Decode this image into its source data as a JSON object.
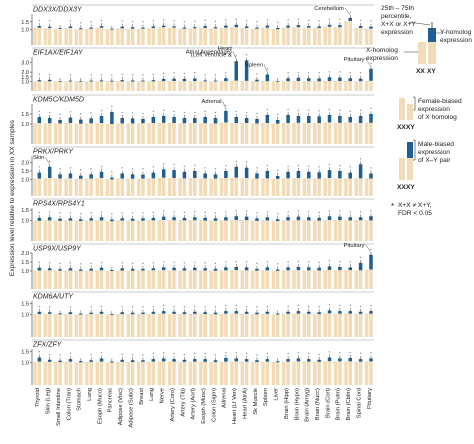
{
  "colors": {
    "x_bar": "#f2dcb7",
    "xy_bar": "#1f5f93",
    "panel_line": "#7a7a7a",
    "ref_line": "#c8c8c8",
    "text": "#222222"
  },
  "y_axis_title": "Expression level relative to expression in XX samples",
  "tissues": [
    "Thyroid",
    "Skin (Leg)",
    "Small Intestine",
    "Colon (Tran)",
    "Stomach",
    "Lung",
    "Esoph (Muco)",
    "Pancreas",
    "Adipose (Visc)",
    "Adipose (Subc)",
    "Breast",
    "Lung",
    "Nerve",
    "Artery (Coro)",
    "Artery (Tib)",
    "Artery (Aort)",
    "Esoph (Musc)",
    "Colon (Sigm)",
    "Adrenal",
    "Heart (Lf Ven)",
    "Heart (AtrA)",
    "Sk Muscle",
    "Spleen",
    "Liver",
    "Brain (Hipp)",
    "Brain (Hypo)",
    "Brain (Amyg)",
    "Brain (Nucc)",
    "Brain (Cort)",
    "Brain (Putm)",
    "Brain (Cblm)",
    "Spinal Cord",
    "Pituitary"
  ],
  "chart_data": [
    {
      "type": "bar",
      "title": "DDX3X/DDX3Y",
      "ylim": [
        0,
        2.0
      ],
      "yticks": [
        1.0,
        1.5
      ],
      "x_values": [
        1.12,
        1.09,
        1.05,
        1.1,
        1.02,
        1.05,
        1.12,
        1.0,
        1.08,
        1.06,
        1.05,
        1.1,
        1.15,
        1.12,
        1.05,
        1.08,
        1.1,
        1.08,
        1.12,
        1.15,
        1.1,
        1.05,
        1.12,
        1.02,
        1.12,
        1.15,
        1.12,
        1.1,
        1.18,
        1.15,
        1.55,
        1.1,
        1.06
      ],
      "xy_values": [
        1.22,
        1.18,
        1.1,
        1.2,
        1.08,
        1.12,
        1.22,
        1.05,
        1.18,
        1.15,
        1.12,
        1.2,
        1.25,
        1.2,
        1.12,
        1.15,
        1.22,
        1.15,
        1.25,
        1.3,
        1.2,
        1.12,
        1.25,
        1.1,
        1.25,
        1.28,
        1.22,
        1.2,
        1.3,
        1.28,
        1.75,
        1.22,
        1.18
      ]
    },
    {
      "type": "bar",
      "title": "EIF1AX/EIF1AY",
      "ylim": [
        0,
        3.6
      ],
      "yticks": [
        1.0,
        1.5,
        2.0,
        3.0
      ],
      "x_values": [
        1.02,
        1.03,
        1.0,
        1.02,
        1.01,
        1.02,
        1.03,
        1.0,
        1.02,
        1.01,
        1.02,
        1.03,
        1.05,
        1.06,
        1.04,
        1.06,
        1.03,
        1.02,
        1.05,
        1.1,
        1.08,
        1.02,
        1.04,
        1.0,
        1.04,
        1.06,
        1.04,
        1.03,
        1.06,
        1.05,
        1.05,
        1.04,
        1.08
      ],
      "xy_values": [
        1.15,
        1.18,
        1.05,
        1.1,
        1.06,
        1.1,
        1.12,
        1.08,
        1.15,
        1.12,
        1.1,
        1.15,
        1.28,
        1.3,
        1.28,
        1.32,
        1.12,
        1.1,
        1.35,
        3.15,
        3.25,
        1.2,
        1.75,
        1.05,
        1.35,
        1.4,
        1.35,
        1.32,
        1.45,
        1.42,
        1.35,
        1.3,
        2.35
      ]
    },
    {
      "type": "bar",
      "title": "KDM5C/KDM5D",
      "ylim": [
        0,
        2.0
      ],
      "yticks": [
        1.0,
        1.5
      ],
      "x_values": [
        1.05,
        1.04,
        1.03,
        1.05,
        1.02,
        1.04,
        1.05,
        1.0,
        1.03,
        1.03,
        1.04,
        1.05,
        1.06,
        1.05,
        1.04,
        1.05,
        1.04,
        1.03,
        1.08,
        1.05,
        1.05,
        1.03,
        1.05,
        1.02,
        1.05,
        1.06,
        1.05,
        1.05,
        1.08,
        1.06,
        1.08,
        1.05,
        1.06
      ],
      "xy_values": [
        1.35,
        1.3,
        1.2,
        1.32,
        1.22,
        1.28,
        1.4,
        1.6,
        1.3,
        1.28,
        1.25,
        1.35,
        1.4,
        1.35,
        1.3,
        1.3,
        1.35,
        1.3,
        1.65,
        1.35,
        1.3,
        1.25,
        1.45,
        1.2,
        1.45,
        1.4,
        1.4,
        1.38,
        1.45,
        1.4,
        1.35,
        1.4,
        1.5
      ]
    },
    {
      "type": "bar",
      "title": "PRKX/PRKY",
      "ylim": [
        0,
        2.4
      ],
      "yticks": [
        1.0,
        1.5,
        2.0
      ],
      "x_values": [
        1.05,
        1.08,
        1.05,
        1.06,
        1.03,
        1.05,
        1.08,
        1.0,
        1.05,
        1.04,
        1.05,
        1.06,
        1.1,
        1.08,
        1.06,
        1.08,
        1.06,
        1.05,
        1.08,
        1.1,
        1.08,
        1.05,
        1.06,
        1.03,
        1.06,
        1.08,
        1.06,
        1.05,
        1.08,
        1.06,
        1.05,
        1.06,
        1.05
      ],
      "xy_values": [
        1.4,
        1.75,
        1.3,
        1.35,
        1.22,
        1.3,
        1.45,
        1.1,
        1.35,
        1.3,
        1.28,
        1.4,
        1.6,
        1.55,
        1.45,
        1.5,
        1.35,
        1.3,
        1.5,
        1.75,
        1.7,
        1.35,
        1.5,
        1.2,
        1.45,
        1.5,
        1.45,
        1.42,
        1.55,
        1.5,
        1.4,
        1.9,
        1.35
      ]
    },
    {
      "type": "bar",
      "title": "RPS4X/RPS4Y1",
      "ylim": [
        0,
        1.6
      ],
      "yticks": [
        1.0,
        1.5
      ],
      "x_values": [
        0.98,
        1.0,
        0.98,
        0.99,
        0.97,
        0.99,
        1.0,
        0.96,
        0.99,
        0.98,
        0.99,
        1.0,
        1.02,
        1.01,
        1.0,
        1.01,
        0.99,
        0.98,
        1.0,
        1.02,
        1.01,
        0.98,
        1.0,
        0.97,
        1.0,
        1.01,
        1.0,
        0.99,
        1.02,
        1.01,
        1.0,
        1.01,
        1.0
      ],
      "xy_values": [
        1.12,
        1.15,
        1.08,
        1.1,
        1.05,
        1.1,
        1.15,
        1.04,
        1.1,
        1.08,
        1.1,
        1.12,
        1.18,
        1.15,
        1.12,
        1.15,
        1.12,
        1.1,
        1.15,
        1.2,
        1.18,
        1.1,
        1.15,
        1.05,
        1.15,
        1.18,
        1.15,
        1.12,
        1.2,
        1.18,
        1.15,
        1.15,
        1.2
      ]
    },
    {
      "type": "bar",
      "title": "USP9X/USP9Y",
      "ylim": [
        0,
        2.0
      ],
      "yticks": [
        1.0,
        1.5,
        2.0
      ],
      "x_values": [
        1.03,
        1.04,
        1.02,
        1.03,
        1.01,
        1.02,
        1.04,
        1.0,
        1.03,
        1.02,
        1.03,
        1.04,
        1.05,
        1.04,
        1.03,
        1.04,
        1.03,
        1.02,
        1.04,
        1.05,
        1.04,
        1.02,
        1.04,
        1.01,
        1.04,
        1.05,
        1.04,
        1.03,
        1.06,
        1.05,
        1.05,
        1.04,
        1.08
      ],
      "xy_values": [
        1.18,
        1.15,
        1.1,
        1.15,
        1.08,
        1.12,
        1.18,
        1.05,
        1.15,
        1.12,
        1.12,
        1.15,
        1.2,
        1.18,
        1.15,
        1.18,
        1.15,
        1.12,
        1.2,
        1.22,
        1.2,
        1.12,
        1.2,
        1.08,
        1.2,
        1.22,
        1.2,
        1.18,
        1.25,
        1.22,
        1.2,
        1.45,
        1.9
      ]
    },
    {
      "type": "bar",
      "title": "KDM6A/UTY",
      "ylim": [
        0,
        1.6
      ],
      "yticks": [
        1.0,
        1.5
      ],
      "x_values": [
        1.02,
        1.03,
        1.01,
        1.02,
        1.0,
        1.02,
        1.03,
        0.99,
        1.02,
        1.01,
        1.02,
        1.03,
        1.04,
        1.03,
        1.02,
        1.03,
        1.02,
        1.01,
        1.04,
        1.04,
        1.03,
        1.01,
        1.03,
        1.0,
        1.03,
        1.04,
        1.03,
        1.02,
        1.05,
        1.04,
        1.04,
        1.03,
        1.04
      ],
      "xy_values": [
        1.12,
        1.1,
        1.05,
        1.1,
        1.04,
        1.08,
        1.12,
        1.02,
        1.1,
        1.08,
        1.08,
        1.12,
        1.15,
        1.12,
        1.1,
        1.12,
        1.1,
        1.08,
        1.15,
        1.15,
        1.12,
        1.08,
        1.12,
        1.04,
        1.12,
        1.15,
        1.12,
        1.1,
        1.18,
        1.15,
        1.15,
        1.12,
        1.15
      ]
    },
    {
      "type": "bar",
      "title": "ZFX/ZFY",
      "ylim": [
        0,
        1.6
      ],
      "yticks": [
        1.0,
        1.5
      ],
      "x_values": [
        1.04,
        1.03,
        1.02,
        1.04,
        1.01,
        1.03,
        1.04,
        1.0,
        1.03,
        1.02,
        1.03,
        1.04,
        1.05,
        1.04,
        1.03,
        1.04,
        1.03,
        1.02,
        1.04,
        1.05,
        1.04,
        1.02,
        1.04,
        1.01,
        1.04,
        1.05,
        1.04,
        1.03,
        1.06,
        1.05,
        1.05,
        1.04,
        1.05
      ],
      "xy_values": [
        1.22,
        1.12,
        1.08,
        1.15,
        1.06,
        1.1,
        1.18,
        1.04,
        1.12,
        1.1,
        1.1,
        1.15,
        1.18,
        1.15,
        1.12,
        1.15,
        1.15,
        1.1,
        1.2,
        1.18,
        1.15,
        1.1,
        1.15,
        1.05,
        1.15,
        1.18,
        1.15,
        1.12,
        1.22,
        1.18,
        1.2,
        1.15,
        1.18
      ]
    }
  ],
  "annotations": [
    {
      "panel": 0,
      "tissue": 30,
      "text": "Cerebellum"
    },
    {
      "panel": 1,
      "tissue": 19,
      "text": "Heart"
    },
    {
      "panel": 1,
      "tissue": 19,
      "text": "(Left Ventricle &"
    },
    {
      "panel": 1,
      "tissue": 19,
      "text": "Atrial Appendage)"
    },
    {
      "panel": 1,
      "tissue": 22,
      "text": "Spleen"
    },
    {
      "panel": 1,
      "tissue": 32,
      "text": "Pituitary"
    },
    {
      "panel": 2,
      "tissue": 18,
      "text": "Adrenal"
    },
    {
      "panel": 3,
      "tissue": 1,
      "text": "Skin"
    },
    {
      "panel": 5,
      "tissue": 32,
      "text": "Pituitary"
    }
  ],
  "legend": {
    "percentile_line1": "25th – 75th",
    "percentile_line2": "percentile,",
    "percentile_line3": "X+X or X+Y",
    "percentile_line4": "expression",
    "y_homolog_line1": "Y-homolog",
    "y_homolog_line2": "expression",
    "x_homolog_line1": "X-homolog",
    "x_homolog_line2": "expression",
    "xx_label": "XX",
    "xy_label": "XY",
    "female_line1": "Female-biased",
    "female_line2": "expression",
    "female_line3": "of X homolog",
    "male_line1": "Male-biased",
    "male_line2": "expression",
    "male_line3": "of X–Y pair",
    "star_symbol": "*",
    "star_line1": "X+X ≠ X+Y,",
    "star_line2": "FDR < 0.05"
  }
}
